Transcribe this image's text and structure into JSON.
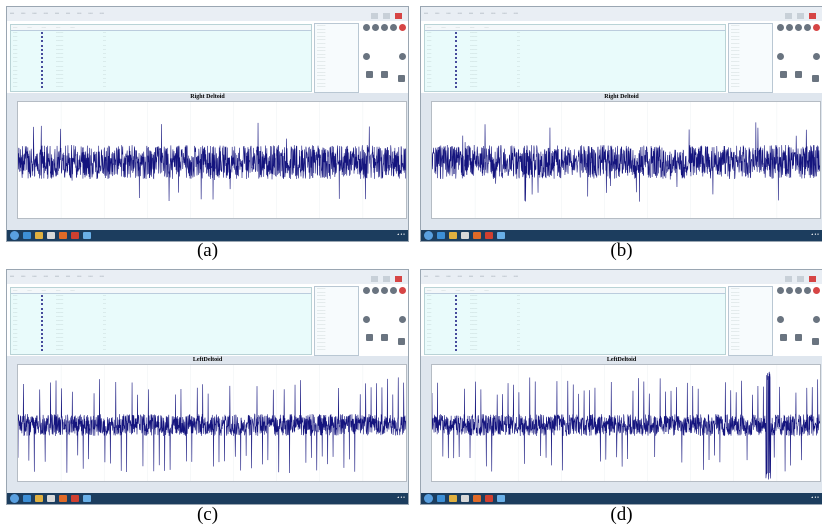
{
  "panels": [
    {
      "caption": "(a)",
      "chart_title": "Right Deltoid",
      "spike_style": "dense",
      "seed": 11
    },
    {
      "caption": "(b)",
      "chart_title": "Right Deltoid",
      "spike_style": "dense",
      "seed": 23
    },
    {
      "caption": "(c)",
      "chart_title": "LeftDeltoid",
      "spike_style": "periodic",
      "seed": 37
    },
    {
      "caption": "(d)",
      "chart_title": "LeftDeltoid",
      "spike_style": "periodic-burst",
      "seed": 53
    }
  ],
  "colors": {
    "signal": "#14147e",
    "table_bg": "#e9fbfb",
    "taskbar": "#1c3d5e",
    "close_button": "#d64545"
  },
  "icons": [
    "windows-start-icon",
    "ie-icon",
    "folder-icon",
    "media-icon",
    "office-icon",
    "chrome-icon",
    "app-icon"
  ]
}
